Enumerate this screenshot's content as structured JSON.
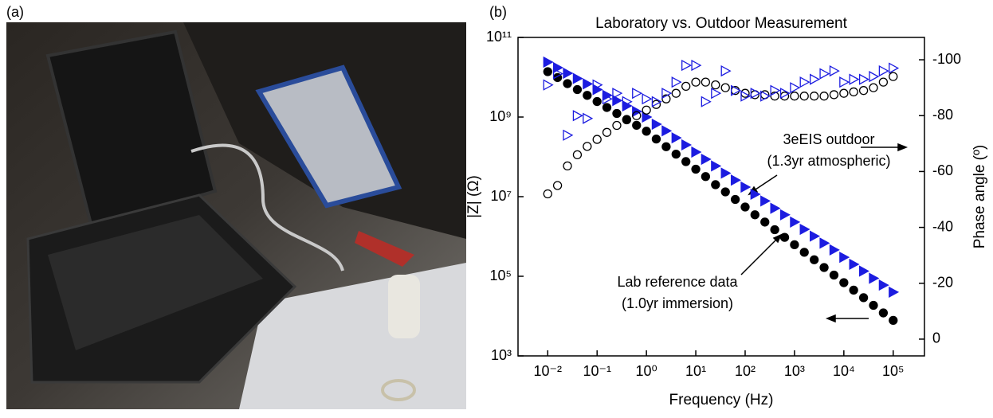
{
  "panel_labels": [
    "(a)",
    "(b)"
  ],
  "chart_data": {
    "type": "scatter",
    "title": "Laboratory vs. Outdoor Measurement",
    "x_label": "Frequency (Hz)",
    "y_label": "|Z| (Ω)",
    "y2_label": "Phase angle (º)",
    "log_x": true,
    "log_y": true,
    "xlim": [
      0.0025,
      430000
    ],
    "xticks": [
      {
        "value": 0.01,
        "label": "10⁻²"
      },
      {
        "value": 0.1,
        "label": "10⁻¹"
      },
      {
        "value": 1,
        "label": "10⁰"
      },
      {
        "value": 10,
        "label": "10¹"
      },
      {
        "value": 100,
        "label": "10²"
      },
      {
        "value": 1000,
        "label": "10³"
      },
      {
        "value": 10000,
        "label": "10⁴"
      },
      {
        "value": 100000,
        "label": "10⁵"
      }
    ],
    "ylim": [
      1000,
      100000000000
    ],
    "yticks": [
      {
        "value": 1000,
        "label": "10³"
      },
      {
        "value": 100000,
        "label": "10⁵"
      },
      {
        "value": 10000000,
        "label": "10⁷"
      },
      {
        "value": 1000000000,
        "label": "10⁹"
      },
      {
        "value": 100000000000,
        "label": "10¹¹"
      }
    ],
    "y2lim": [
      6,
      -108
    ],
    "y2ticks": [
      -100,
      -80,
      -60,
      -40,
      -20,
      0
    ],
    "x": [
      0.01,
      0.0158,
      0.0251,
      0.0398,
      0.0631,
      0.1,
      0.158,
      0.251,
      0.398,
      0.631,
      1,
      1.58,
      2.51,
      3.98,
      6.31,
      10,
      15.8,
      25.1,
      39.8,
      63.1,
      100,
      158,
      251,
      398,
      631,
      1000,
      1580,
      2510,
      3980,
      6310,
      10000,
      15800,
      25100,
      39800,
      63100,
      100000
    ],
    "series": [
      {
        "color": "#000000",
        "marker": "circle",
        "filled": true,
        "axis": "y",
        "values": [
          13800000000,
          9800000000,
          6900000000,
          4900000000,
          3500000000,
          2450000000,
          1740000000,
          1230000000,
          870000000,
          620000000,
          440000000,
          280000000,
          180000000,
          117000000,
          76000000,
          49000000,
          32000000,
          20000000,
          13200000,
          8500000,
          5500000,
          3500000,
          2300000,
          1480000,
          950000,
          620000,
          400000,
          260000,
          166000,
          107000,
          69000,
          45000,
          29000,
          18600,
          12000,
          7800
        ]
      },
      {
        "color": "#1c1ce0",
        "marker": "triangle",
        "filled": true,
        "axis": "y",
        "values": [
          24000000000,
          17400000000,
          12600000000,
          9300000000,
          6800000000,
          4900000000,
          3500000000,
          2600000000,
          1900000000,
          1380000000,
          1000000000,
          660000000,
          450000000,
          300000000,
          200000000,
          132000000,
          87000000,
          59000000,
          39000000,
          26000000,
          17400000,
          11500000,
          7800000,
          5100000,
          3500000,
          2300000,
          1510000,
          1020000,
          680000,
          460000,
          300000,
          200000,
          135000,
          89000,
          60000,
          40000
        ]
      },
      {
        "color": "#000000",
        "marker": "circle",
        "filled": false,
        "axis": "y2",
        "values": [
          -52,
          -55,
          -62,
          -66,
          -69,
          -71.5,
          -74,
          -76.5,
          -78.5,
          -80,
          -82,
          -84,
          -86,
          -88,
          -90.5,
          -92,
          -92,
          -91,
          -90,
          -89,
          -88,
          -87.5,
          -87.5,
          -87,
          -87,
          -87,
          -87,
          -87,
          -87,
          -87.5,
          -88,
          -88.5,
          -89,
          -90,
          -92,
          -94
        ]
      },
      {
        "color": "#1c1ce0",
        "marker": "triangle",
        "filled": false,
        "axis": "y2",
        "values": [
          -91,
          -95,
          -73,
          -80,
          -79,
          -91,
          -86,
          -88,
          -85,
          -88,
          -86,
          -85,
          -88,
          -92,
          -98,
          -98,
          -85,
          -88,
          -96,
          -89,
          -87,
          -88,
          -87,
          -89,
          -88,
          -90,
          -92,
          -93,
          -95,
          -96,
          -92,
          -93,
          -93,
          -94,
          -96,
          -97
        ]
      }
    ],
    "annotations": [
      "3eEIS outdoor",
      "(1.3yr atmospheric)",
      "Lab reference data",
      "(1.0yr immersion)"
    ]
  }
}
